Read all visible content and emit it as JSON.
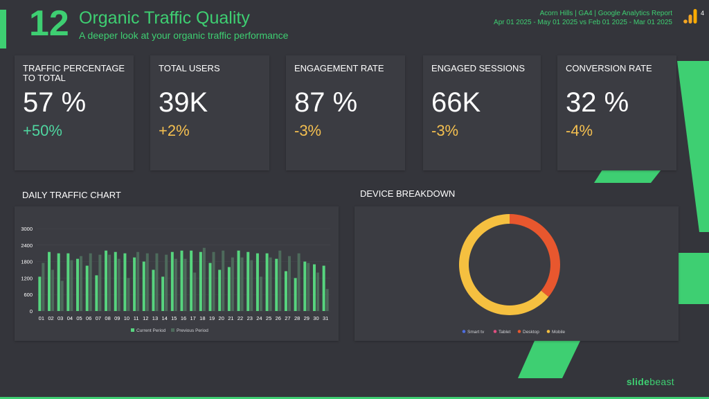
{
  "header": {
    "page_number": "12",
    "title": "Organic Traffic Quality",
    "subtitle": "A deeper look at your organic traffic performance",
    "report_line": "Acorn Hills | GA4 | Google Analytics Report",
    "date_line": "Apr 01 2025 - May 01 2025 vs Feb 01 2025 - Mar 01 2025",
    "badge": "4"
  },
  "colors": {
    "accent": "#3ecf72",
    "positive": "#4fd6a0",
    "negative": "#f5c050",
    "current": "#57d47e",
    "previous": "#4d6a5b",
    "smart_tv": "#4d6de0",
    "tablet": "#e04e80",
    "desktop": "#e8572e",
    "mobile": "#f5c040"
  },
  "kpis": [
    {
      "label": "TRAFFIC PERCENTAGE TO TOTAL",
      "value": "57 %",
      "delta": "+50%",
      "trend": "positive"
    },
    {
      "label": "TOTAL USERS",
      "value": "39K",
      "delta": "+2%",
      "trend": "negative"
    },
    {
      "label": "ENGAGEMENT RATE",
      "value": "87 %",
      "delta": "-3%",
      "trend": "negative"
    },
    {
      "label": "ENGAGED SESSIONS",
      "value": "66K",
      "delta": "-3%",
      "trend": "negative"
    },
    {
      "label": "CONVERSION RATE",
      "value": "32 %",
      "delta": "-4%",
      "trend": "negative"
    }
  ],
  "sections": {
    "daily_traffic": "DAILY TRAFFIC CHART",
    "device_breakdown": "DEVICE BREAKDOWN"
  },
  "brand": {
    "bold": "slide",
    "rest": "beast"
  },
  "chart_data": [
    {
      "type": "bar",
      "title": "DAILY TRAFFIC CHART",
      "categories": [
        "01",
        "02",
        "03",
        "04",
        "05",
        "06",
        "07",
        "08",
        "09",
        "10",
        "11",
        "12",
        "13",
        "14",
        "15",
        "16",
        "17",
        "18",
        "19",
        "20",
        "21",
        "22",
        "23",
        "24",
        "25",
        "26",
        "27",
        "28",
        "29",
        "30",
        "31"
      ],
      "series": [
        {
          "name": "Current Period",
          "values": [
            1250,
            2150,
            2100,
            2100,
            1900,
            1650,
            1300,
            2200,
            2150,
            2100,
            1950,
            1800,
            1500,
            1250,
            2150,
            2200,
            2200,
            2150,
            1750,
            1500,
            1600,
            2200,
            2150,
            2100,
            2100,
            1900,
            1450,
            1200,
            1800,
            1700,
            1650
          ]
        },
        {
          "name": "Previous Period",
          "values": [
            1750,
            1500,
            1100,
            1850,
            2000,
            2100,
            2050,
            2050,
            1900,
            1200,
            2150,
            2100,
            2100,
            2050,
            1900,
            1900,
            1400,
            2300,
            2150,
            2200,
            1950,
            1950,
            1850,
            1250,
            1950,
            2200,
            2000,
            2100,
            1750,
            1400,
            800
          ]
        }
      ],
      "ylim": [
        0,
        3000
      ],
      "yticks": [
        0,
        600,
        1200,
        1800,
        2400,
        3000
      ],
      "legend": "bottom"
    },
    {
      "type": "pie",
      "title": "DEVICE BREAKDOWN",
      "style": "donut",
      "labels": [
        "Smart tv",
        "Tablet",
        "Desktop",
        "Mobile"
      ],
      "values": [
        0,
        0,
        36,
        64
      ],
      "legend": "bottom"
    }
  ]
}
